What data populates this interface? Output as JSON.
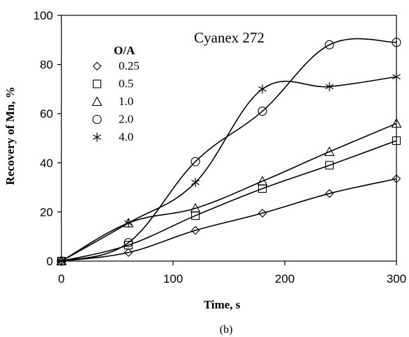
{
  "chart_data": {
    "type": "line",
    "title": "",
    "annotation": "Cyanex 272",
    "caption": "(b)",
    "xlabel": "Time, s",
    "ylabel": "Recovery of Mn, %",
    "xlim": [
      0,
      300
    ],
    "ylim": [
      0,
      100
    ],
    "xticks": [
      0,
      100,
      200,
      300
    ],
    "yticks": [
      0,
      20,
      40,
      60,
      80,
      100
    ],
    "grid": false,
    "legend_title": "O/A",
    "legend_position": "top-left",
    "series": [
      {
        "name": "0.25",
        "marker": "diamond",
        "x": [
          0,
          60,
          120,
          180,
          240,
          300
        ],
        "y": [
          0,
          3.5,
          12.5,
          19.5,
          27.5,
          33.5
        ]
      },
      {
        "name": "0.5",
        "marker": "square",
        "x": [
          0,
          60,
          120,
          180,
          240,
          300
        ],
        "y": [
          0,
          6.5,
          18.5,
          29.5,
          39,
          49
        ]
      },
      {
        "name": "1.0",
        "marker": "triangle",
        "x": [
          0,
          60,
          120,
          180,
          240,
          300
        ],
        "y": [
          0,
          15.5,
          21.5,
          32.5,
          44.5,
          56
        ]
      },
      {
        "name": "2.0",
        "marker": "circle",
        "x": [
          0,
          60,
          120,
          180,
          240,
          300
        ],
        "y": [
          0,
          7.5,
          40.5,
          61,
          88,
          89
        ]
      },
      {
        "name": "4.0",
        "marker": "asterisk",
        "x": [
          0,
          60,
          120,
          180,
          240,
          300
        ],
        "y": [
          0,
          15.5,
          32,
          70,
          71,
          75
        ]
      }
    ]
  }
}
